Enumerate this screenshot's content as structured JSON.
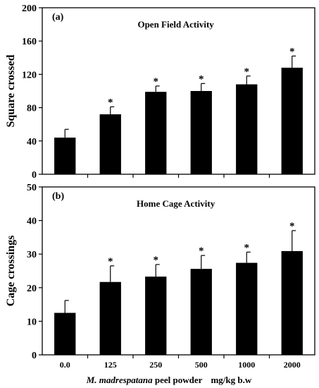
{
  "chart_data": [
    {
      "panel_label": "(a)",
      "type": "bar",
      "title": "Open Field Activity",
      "ylabel": "Square crossed",
      "ylim": [
        0,
        200
      ],
      "yticks": [
        0,
        40,
        80,
        120,
        160,
        200
      ],
      "categories": [
        "0.0",
        "125",
        "250",
        "500",
        "1000",
        "2000"
      ],
      "values": [
        44,
        72,
        99,
        100,
        108,
        128
      ],
      "errors": [
        10,
        9,
        7,
        9,
        10,
        14
      ],
      "significance": [
        "",
        "*",
        "*",
        "*",
        "*",
        "*"
      ],
      "bar_color": "#000000",
      "grid": false
    },
    {
      "panel_label": "(b)",
      "type": "bar",
      "title": "Home Cage Activity",
      "ylabel": "Cage crossings",
      "ylim": [
        0,
        50
      ],
      "yticks": [
        0,
        10,
        20,
        30,
        40,
        50
      ],
      "categories": [
        "0.0",
        "125",
        "250",
        "500",
        "1000",
        "2000"
      ],
      "values": [
        12.5,
        21.7,
        23.3,
        25.6,
        27.4,
        30.9
      ],
      "errors": [
        3.7,
        4.8,
        3.6,
        4.0,
        3.2,
        6.1
      ],
      "significance": [
        "",
        "*",
        "*",
        "*",
        "*",
        "*"
      ],
      "bar_color": "#000000",
      "grid": false
    }
  ],
  "xlabel": {
    "species": "M. madrespatana",
    "rest": " peel powder",
    "unit": "mg/kg b.w"
  }
}
